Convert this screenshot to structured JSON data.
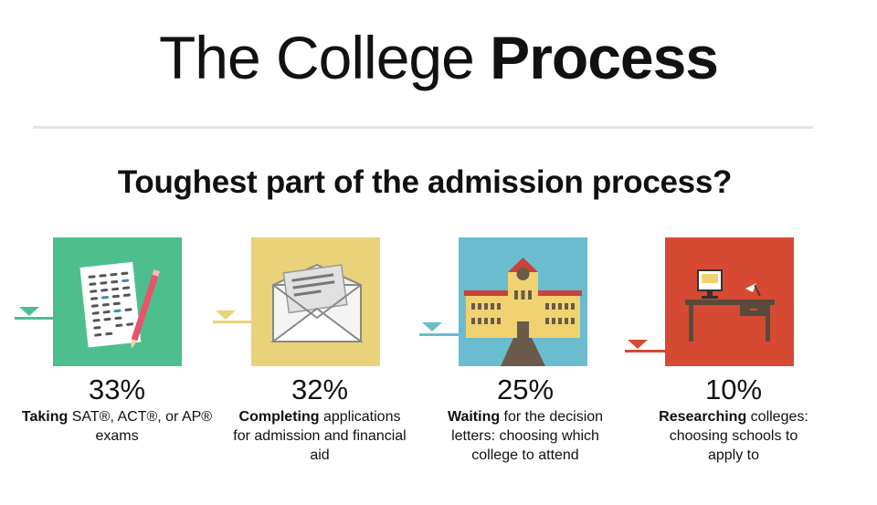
{
  "header": {
    "title_light": "The College ",
    "title_bold": "Process"
  },
  "question": "Toughest part of the admission process?",
  "items": [
    {
      "percent": "33%",
      "bold": "Taking",
      "text": " SAT®, ACT®, or AP® exams",
      "color": "#4dbf8e",
      "icon": "test-sheet-pencil-icon"
    },
    {
      "percent": "32%",
      "bold": "Completing",
      "text": " applications for admission and financial aid",
      "color": "#e9d27a",
      "icon": "envelope-letter-icon"
    },
    {
      "percent": "25%",
      "bold": "Waiting",
      "text": " for the decision letters: choosing which college to attend",
      "color": "#6cbcd0",
      "icon": "college-building-icon"
    },
    {
      "percent": "10%",
      "bold": "Researching",
      "text": " colleges: choosing schools to apply to",
      "color": "#d64a33",
      "icon": "desk-computer-icon"
    }
  ]
}
